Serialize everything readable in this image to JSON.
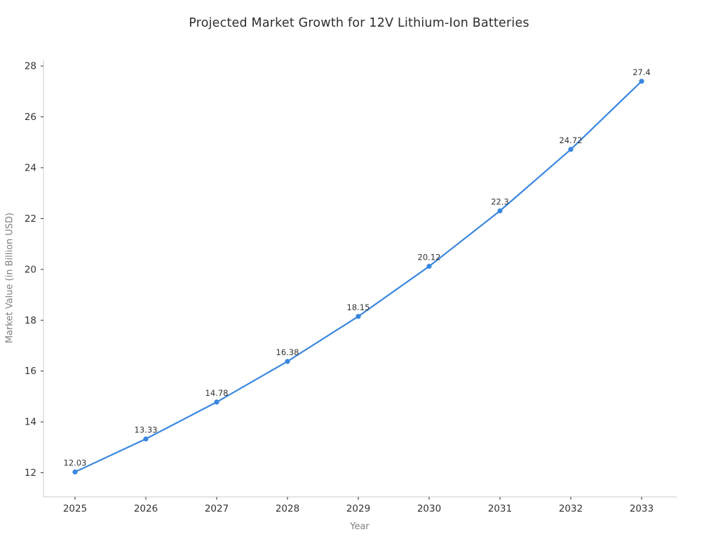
{
  "title": "Projected Market Growth for 12V Lithium-Ion Batteries",
  "colors": {
    "line": "#3a87e0",
    "marker": "#3a87e0",
    "title_text": "#2e2e2e",
    "tick_text": "#333333",
    "data_label_text": "#333333",
    "axis_label_text": "#808080",
    "spine": "#d4d4d4",
    "tick_mark": "#333333",
    "background": "#ffffff"
  },
  "chart_data": {
    "type": "line",
    "title": "Projected Market Growth for 12V Lithium-Ion Batteries",
    "xlabel": "Year",
    "ylabel": "Market Value (in Billion USD)",
    "categories": [
      "2025",
      "2026",
      "2027",
      "2028",
      "2029",
      "2030",
      "2031",
      "2032",
      "2033"
    ],
    "series": [
      {
        "name": "Market Value",
        "values": [
          12.03,
          13.33,
          14.78,
          16.38,
          18.15,
          20.12,
          22.3,
          24.72,
          27.4
        ],
        "point_labels": [
          "12.03",
          "13.33",
          "14.78",
          "16.38",
          "18.15",
          "20.12",
          "22.3",
          "24.72",
          "27.4"
        ]
      }
    ],
    "yticks": [
      12,
      14,
      16,
      18,
      20,
      22,
      24,
      26,
      28
    ],
    "ylim": [
      11.05,
      28.25
    ],
    "grid": false,
    "legend": "none",
    "marker": "circle",
    "data_labels_shown": true
  }
}
